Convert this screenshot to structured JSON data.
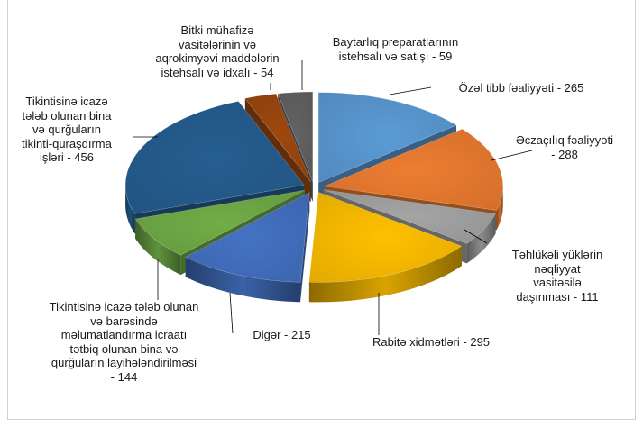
{
  "chart_data": {
    "type": "pie",
    "title": "",
    "series": [
      {
        "name": "",
        "values": [
          265,
          288,
          111,
          295,
          215,
          144,
          456,
          54,
          59
        ]
      }
    ],
    "categories": [
      "Özəl tibb fəaliyyəti",
      "Əczaçılıq fəaliyyəti",
      "Təhlükəli yüklərin nəqliyyat vasitəsilə daşınması",
      "Rabitə xidmətləri",
      "Digər",
      "Tikintisinə icazə tələb olunan və barəsində məlumatlandırma icraatı tətbiq olunan bina və qurğuların layihələndirilməsi",
      "Tikintisinə icazə tələb olunan bina və qurğuların tikinti-quraşdırma işləri",
      "Bitki mühafizə vasitələrinin və aqrokimyəvi maddələrin istehsalı və idxalı",
      "Baytarlıq preparatlarının istehsalı və satışı"
    ],
    "slices": [
      {
        "label": "Özəl tibb fəaliyyəti",
        "value": 265,
        "color": "#5B9BD5"
      },
      {
        "label": "Əczaçılıq fəaliyyəti",
        "value": 288,
        "color": "#ED7D31"
      },
      {
        "label": "Təhlükəli yüklərin nəqliyyat vasitəsilə daşınması",
        "value": 111,
        "color": "#A5A5A5"
      },
      {
        "label": "Rabitə xidmətləri",
        "value": 295,
        "color": "#FFC000"
      },
      {
        "label": "Digər",
        "value": 215,
        "color": "#4472C4"
      },
      {
        "label": "Tikintisinə icazə tələb olunan və barəsində məlumatlandırma icraatı tətbiq olunan bina və qurğuların layihələndirilməsi",
        "value": 144,
        "color": "#70AD47"
      },
      {
        "label": "Tikintisinə icazə tələb olunan bina və qurğuların tikinti-quraşdırma işləri",
        "value": 456,
        "color": "#255E91"
      },
      {
        "label": "Bitki mühafizə vasitələrinin və aqrokimyəvi maddələrin istehsalı və idxalı",
        "value": 54,
        "color": "#9E480E"
      },
      {
        "label": "Baytarlıq preparatlarının istehsalı və satışı",
        "value": 59,
        "color": "#636363"
      }
    ],
    "data_labels": [
      "Özəl tibb fəaliyyəti - 265",
      "Əczaçılıq fəaliyyəti\n- 288",
      "Təhlükəli yüklərin\nnəqliyyat\nvasitəsilə\ndaşınması - 111",
      "Rabitə xidmətləri - 295",
      "Digər - 215",
      "Tikintisinə icazə tələb olunan\nvə barəsində\nməlumatlandırma icraatı\ntətbiq olunan bina və\nqurğuların layihələndirilməsi\n- 144",
      "Tikintisinə icazə\ntələb olunan bina\nvə qurğuların\ntikinti-quraşdırma\nişləri - 456",
      "Bitki mühafizə\nvasitələrinin və\naqrokimyəvi maddələrin\nistehsalı və idxalı - 54",
      "Baytarlıq preparatlarının\nistehsalı və satışı - 59"
    ],
    "legend": "none",
    "style": "3d-exploded"
  }
}
